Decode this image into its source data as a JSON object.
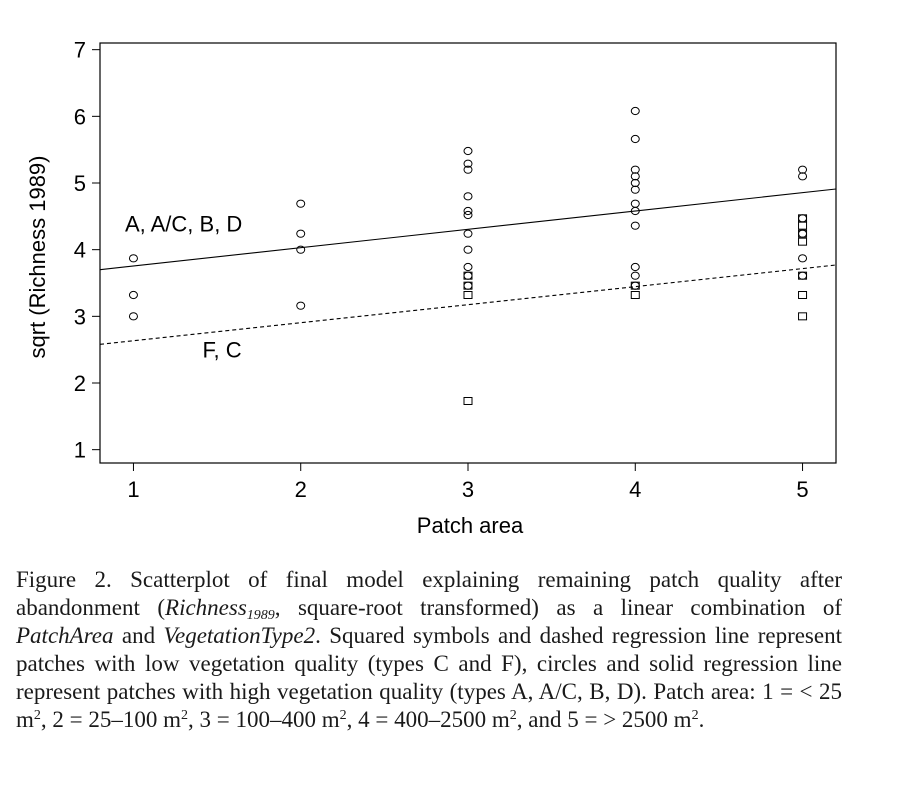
{
  "chart_data": {
    "type": "scatter",
    "xlabel": "Patch area",
    "ylabel": "sqrt (Richness 1989)",
    "xlim": [
      0.8,
      5.2
    ],
    "ylim": [
      0.8,
      7.1
    ],
    "xticks": [
      1,
      2,
      3,
      4,
      5
    ],
    "yticks": [
      1,
      2,
      3,
      4,
      5,
      6,
      7
    ],
    "series": [
      {
        "marker": "circle",
        "points": [
          [
            1,
            3.87
          ],
          [
            1,
            3.32
          ],
          [
            1,
            3.0
          ],
          [
            2,
            4.69
          ],
          [
            2,
            4.24
          ],
          [
            2,
            4.0
          ],
          [
            2,
            3.16
          ],
          [
            3,
            5.48
          ],
          [
            3,
            5.29
          ],
          [
            3,
            5.2
          ],
          [
            3,
            4.8
          ],
          [
            3,
            4.58
          ],
          [
            3,
            4.52
          ],
          [
            3,
            4.24
          ],
          [
            3,
            4.0
          ],
          [
            3,
            3.74
          ],
          [
            3,
            3.61
          ],
          [
            3,
            3.46
          ],
          [
            4,
            6.08
          ],
          [
            4,
            5.66
          ],
          [
            4,
            5.2
          ],
          [
            4,
            5.1
          ],
          [
            4,
            5.0
          ],
          [
            4,
            4.9
          ],
          [
            4,
            4.69
          ],
          [
            4,
            4.58
          ],
          [
            4,
            4.36
          ],
          [
            4,
            3.74
          ],
          [
            4,
            3.61
          ],
          [
            4,
            3.46
          ],
          [
            5,
            5.2
          ],
          [
            5,
            5.1
          ],
          [
            5,
            4.47
          ],
          [
            5,
            4.24
          ],
          [
            5,
            3.87
          ],
          [
            5,
            3.61
          ]
        ]
      },
      {
        "marker": "square",
        "points": [
          [
            3,
            3.61
          ],
          [
            3,
            3.46
          ],
          [
            3,
            3.32
          ],
          [
            3,
            1.73
          ],
          [
            4,
            3.46
          ],
          [
            4,
            3.32
          ],
          [
            5,
            4.47
          ],
          [
            5,
            4.36
          ],
          [
            5,
            4.24
          ],
          [
            5,
            4.12
          ],
          [
            5,
            3.61
          ],
          [
            5,
            3.32
          ],
          [
            5,
            3.0
          ]
        ]
      }
    ],
    "lines": [
      {
        "style": "solid",
        "x": [
          0.8,
          5.2
        ],
        "y": [
          3.7,
          4.91
        ]
      },
      {
        "style": "dashed",
        "x": [
          0.8,
          5.2
        ],
        "y": [
          2.58,
          3.77
        ]
      }
    ],
    "annotations": [
      {
        "text": "A, A/C, B, D",
        "x": 1.3,
        "y": 4.27
      },
      {
        "text": "F, C",
        "x": 1.53,
        "y": 2.38
      }
    ]
  },
  "caption": {
    "figure_label": "Figure 2.",
    "part1": " Scatterplot of final model explaining remaining patch quality after abandonment (",
    "richness": "Richness",
    "richness_sub": "1989",
    "part2": ", square-root transformed) as a linear combination of ",
    "patcharea": "PatchArea",
    "part3": " and ",
    "vegtype": "VegetationType2",
    "part4": ". Squared symbols and dashed regression line represent patches with low vegetation quality (types C and F), circles and solid regression line represent patches with high vegetation quality (types A, A/C, B, D). Patch area: 1 = < 25 m",
    "sup2": "2",
    "part5": ", 2 = 25–100 m",
    "part6": ", 3 = 100–400 m",
    "part7": ", 4 = 400–2500 m",
    "part8": ", and 5 = > 2500 m",
    "part9": "."
  }
}
